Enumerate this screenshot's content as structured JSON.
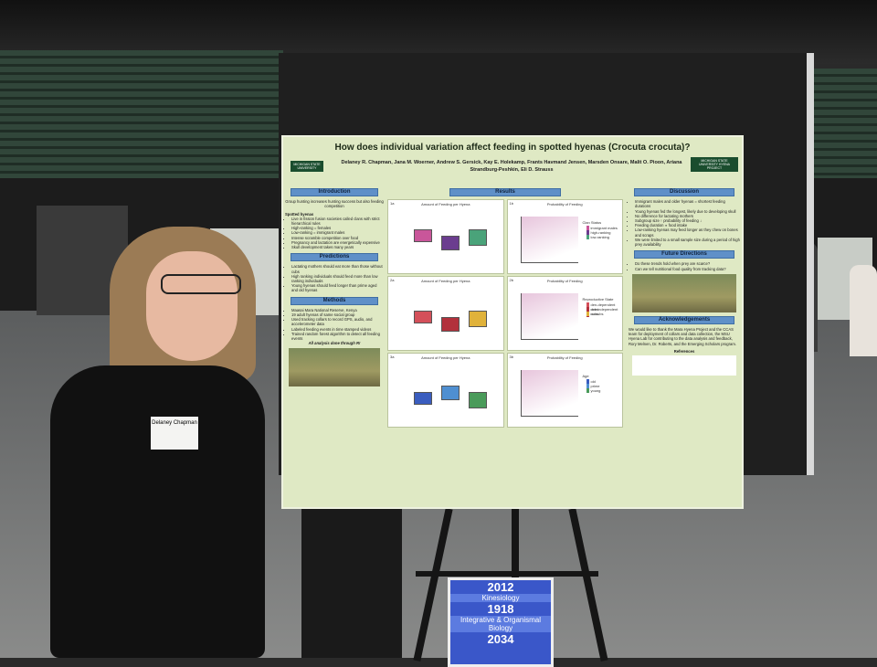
{
  "poster": {
    "title": "How does individual variation affect feeding in spotted hyenas (Crocuta crocuta)?",
    "authors": "Delaney R. Chapman, Jana M. Woerner, Andrew S. Gersick, Kay E. Holekamp, Frants Havmand Jensen, Marsden Onsare, Malit O. Pioon, Ariana Strandburg-Peshkin, Eli D. Strauss",
    "introduction": {
      "heading": "Introduction",
      "text": "Group hunting increases hunting success but also feeding competition",
      "subheading": "Spotted hyenas",
      "bullets": [
        "Live in fission fusion societies called clans with strict hierarchical rules",
        "High-ranking = females",
        "Low-ranking = immigrant males",
        "Intense scramble competition over food",
        "Pregnancy and lactation are energetically expensive",
        "Skull development takes many years"
      ]
    },
    "predictions": {
      "heading": "Predictions",
      "bullets": [
        "Lactating mothers should eat more than those without cubs",
        "High ranking individuals should feed more than low ranking individuals",
        "Young hyenas should feed longer than prime aged and old hyenas"
      ]
    },
    "methods": {
      "heading": "Methods",
      "bullets": [
        "Maasai Mara National Reserve, Kenya",
        "19 adult hyenas of same social group",
        "Used tracking collars to record GPS, audio, and accelerometer data",
        "Labeled feeding events in time stamped videos",
        "Trained random forest algorithm to detect all feeding events"
      ],
      "note": "All analysis done through R!"
    },
    "results": {
      "heading": "Results",
      "panels": [
        {
          "label": "1a",
          "title": "Amount of Feeding per Hyena"
        },
        {
          "label": "1b",
          "title": "Probability of Feeding",
          "legend_title": "Clan Status",
          "legend": [
            "immigrant males",
            "high-ranking",
            "low-ranking"
          ]
        },
        {
          "label": "2a",
          "title": "Amount of Feeding per Hyena"
        },
        {
          "label": "2b",
          "title": "Probability of Feeding",
          "legend_title": "Reproductive State",
          "legend": [
            "den-dependent cubs",
            "den independent cubs",
            "no cubs"
          ]
        },
        {
          "label": "3a",
          "title": "Amount of Feeding per Hyena"
        },
        {
          "label": "3b",
          "title": "Probability of Feeding",
          "legend_title": "Age",
          "legend": [
            "old",
            "prime",
            "young"
          ]
        }
      ]
    },
    "discussion": {
      "heading": "Discussion",
      "bullets": [
        "Immigrant males and older hyenas = shortest feeding durations",
        "Young hyenas fed the longest, likely due to developing skull",
        "No difference for lactating mothers",
        "Subgroup size ↑ probability of feeding ↓",
        "Feeding duration ∝ food intake",
        "Low-ranking hyenas may feed longer as they chew on bones and scraps",
        "We were limited to a small sample size during a period of high prey availability"
      ]
    },
    "future_directions": {
      "heading": "Future Directions",
      "bullets": [
        "Do these trends hold when prey are scarce?",
        "Can we tell nutritional food quality from tracking data?"
      ]
    },
    "acknowledgements": {
      "heading": "Acknowledgements",
      "text": "We would like to thank the Mara Hyena Project and the CCAS team for deployment of collars and data collection, the MSU Hyena Lab for contributing to the data analysis and feedback, Rory Melnen, Dr. Roberts, and the Emerging Scholars program."
    },
    "references": {
      "heading": "References"
    },
    "logo_left": "MICHIGAN STATE UNIVERSITY",
    "logo_right": "MICHIGAN STATE UNIVERSITY HYENA PROJECT"
  },
  "badge": {
    "name": "Delaney Chapman"
  },
  "sign": {
    "items": [
      {
        "number": "2012",
        "label": "Kinesiology"
      },
      {
        "number": "1918",
        "label": "Integrative & Organismal Biology"
      },
      {
        "number": "2034"
      }
    ]
  }
}
